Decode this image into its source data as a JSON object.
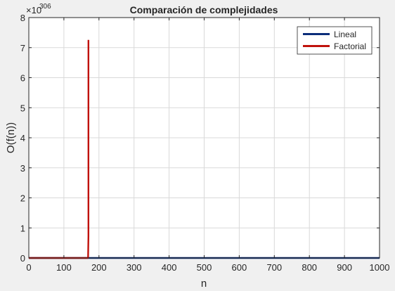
{
  "figure": {
    "background": "#f0f0f0",
    "axes_background": "#ffffff"
  },
  "chart_data": {
    "type": "line",
    "title": "Comparación de complejidades",
    "xlabel": "n",
    "ylabel": "O(f(n))",
    "xlim": [
      0,
      1000
    ],
    "ylim": [
      0,
      8
    ],
    "y_exponent_label": "×10",
    "y_exponent_power": "306",
    "xticks": [
      "0",
      "100",
      "200",
      "300",
      "400",
      "500",
      "600",
      "700",
      "800",
      "900",
      "1000"
    ],
    "yticks": [
      "0",
      "1",
      "2",
      "3",
      "4",
      "5",
      "6",
      "7",
      "8"
    ],
    "grid": true,
    "legend_location": "top-right",
    "series": [
      {
        "name": "Lineal",
        "color": "#0b2d7a",
        "x": [
          0,
          1000
        ],
        "y": [
          0,
          0
        ]
      },
      {
        "name": "Factorial",
        "color": "#c0120c",
        "x": [
          0,
          168,
          169,
          170,
          170
        ],
        "y": [
          0,
          3e-05,
          0.00427,
          0.7257,
          7.257
        ]
      }
    ]
  }
}
